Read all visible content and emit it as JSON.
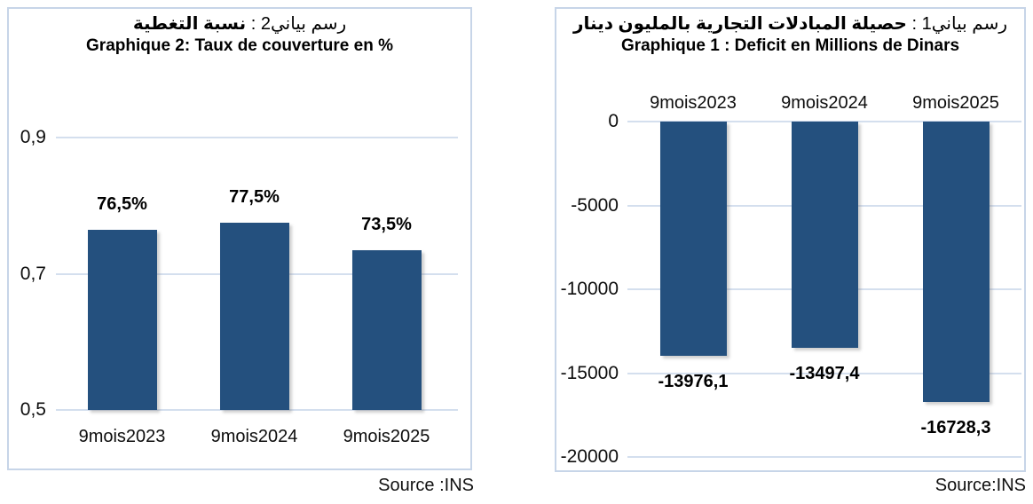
{
  "chart_data": [
    {
      "id": "graphique-2-taux-de-couverture",
      "type": "bar",
      "title_ar_prefix": "رسم بياني2 :",
      "title_ar_main": "نسبة التغطية",
      "title_fr": "Graphique 2: Taux de couverture en %",
      "categories": [
        "9mois2023",
        "9mois2024",
        "9mois2025"
      ],
      "values": [
        0.765,
        0.775,
        0.735
      ],
      "value_labels": [
        "76,5%",
        "77,5%",
        "73,5%"
      ],
      "ylim": [
        0.5,
        0.9
      ],
      "yticks": [
        0.9,
        0.7,
        0.5
      ],
      "ytick_labels": [
        "0,9",
        "0,7",
        "0,5"
      ],
      "xlabel": "",
      "ylabel": "",
      "grid": true,
      "legend": "none",
      "bar_color": "#24507e",
      "source": "Source :INS"
    },
    {
      "id": "graphique-1-deficit",
      "type": "bar",
      "title_ar_prefix": "رسم بياني1 :",
      "title_ar_main": "حصيلة المبادلات التجارية بالمليون دينار",
      "title_fr": "Graphique 1 : Deficit en Millions de Dinars",
      "categories": [
        "9mois2023",
        "9mois2024",
        "9mois2025"
      ],
      "values": [
        -13976.1,
        -13497.4,
        -16728.3
      ],
      "value_labels": [
        "-13976,1",
        "-13497,4",
        "-16728,3"
      ],
      "ylim": [
        -20000,
        0
      ],
      "yticks": [
        0,
        -5000,
        -10000,
        -15000,
        -20000
      ],
      "ytick_labels": [
        "0",
        "-5000",
        "-10000",
        "-15000",
        "-20000"
      ],
      "xlabel": "",
      "ylabel": "",
      "grid": true,
      "legend": "none",
      "bar_color": "#24507e",
      "source": "Source:INS"
    }
  ]
}
